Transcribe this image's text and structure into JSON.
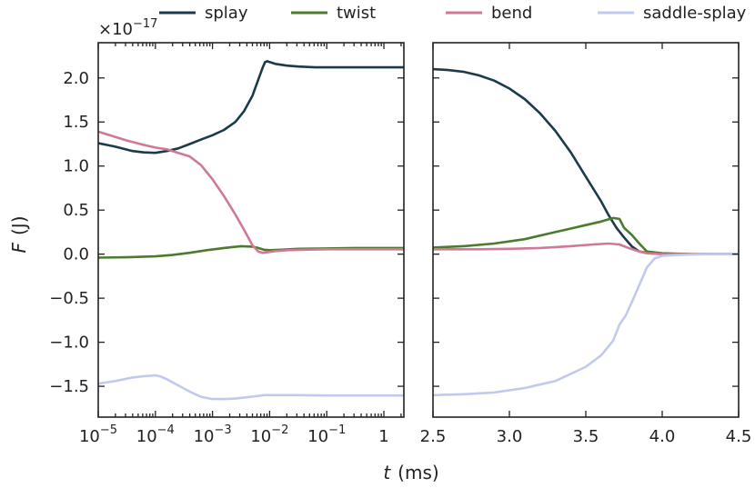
{
  "chart_data": {
    "type": "line",
    "ylabel": "F (J)",
    "ylabel_var": "F",
    "ylabel_unit": "(J)",
    "xlabel": "t (ms)",
    "xlabel_var": "t",
    "xlabel_unit": "(ms)",
    "y_offset": {
      "base": "×10",
      "exp": "−17"
    },
    "ylim": [
      -1.85,
      2.4
    ],
    "yticks": [
      {
        "v": 2.0,
        "label": "2.0"
      },
      {
        "v": 1.5,
        "label": "1.5"
      },
      {
        "v": 1.0,
        "label": "1.0"
      },
      {
        "v": 0.5,
        "label": "0.5"
      },
      {
        "v": 0.0,
        "label": "0.0"
      },
      {
        "v": -0.5,
        "label": "−0.5"
      },
      {
        "v": -1.0,
        "label": "−1.0"
      },
      {
        "v": -1.5,
        "label": "−1.5"
      }
    ],
    "legend": [
      {
        "name": "splay",
        "color": "#1c3b4a"
      },
      {
        "name": "twist",
        "color": "#4c7a2e"
      },
      {
        "name": "bend",
        "color": "#cf7a94"
      },
      {
        "name": "saddle-splay",
        "color": "#c2c9ef"
      }
    ],
    "panels": [
      {
        "scale": "log",
        "xlim": [
          -5,
          0.35
        ],
        "xticks": [
          {
            "v": -5,
            "base": "10",
            "exp": "−5"
          },
          {
            "v": -4,
            "base": "10",
            "exp": "−4"
          },
          {
            "v": -3,
            "base": "10",
            "exp": "−3"
          },
          {
            "v": -2,
            "base": "10",
            "exp": "−2"
          },
          {
            "v": -1,
            "base": "10",
            "exp": "−1"
          },
          {
            "v": 0,
            "base": "1",
            "exp": ""
          }
        ],
        "series": [
          {
            "name": "splay",
            "color": "#1c3b4a",
            "x": [
              -5,
              -4.7,
              -4.4,
              -4.2,
              -4.0,
              -3.8,
              -3.6,
              -3.4,
              -3.2,
              -3.0,
              -2.8,
              -2.6,
              -2.45,
              -2.3,
              -2.2,
              -2.12,
              -2.08,
              -2.04,
              -2.0,
              -1.9,
              -1.7,
              -1.5,
              -1.2,
              -0.8,
              -0.4,
              0.0,
              0.35
            ],
            "y": [
              1.26,
              1.22,
              1.17,
              1.155,
              1.15,
              1.17,
              1.2,
              1.25,
              1.3,
              1.35,
              1.41,
              1.5,
              1.62,
              1.8,
              1.98,
              2.12,
              2.18,
              2.19,
              2.18,
              2.16,
              2.14,
              2.13,
              2.12,
              2.12,
              2.12,
              2.12,
              2.12
            ]
          },
          {
            "name": "twist",
            "color": "#4c7a2e",
            "x": [
              -5,
              -4.5,
              -4.0,
              -3.7,
              -3.4,
              -3.1,
              -2.8,
              -2.5,
              -2.3,
              -2.2,
              -2.1,
              -2.0,
              -1.8,
              -1.5,
              -1.0,
              -0.5,
              0.0,
              0.35
            ],
            "y": [
              -0.04,
              -0.035,
              -0.025,
              -0.01,
              0.015,
              0.045,
              0.07,
              0.09,
              0.085,
              0.07,
              0.05,
              0.045,
              0.05,
              0.06,
              0.065,
              0.07,
              0.07,
              0.07
            ]
          },
          {
            "name": "bend",
            "color": "#cf7a94",
            "x": [
              -5,
              -4.8,
              -4.5,
              -4.2,
              -4.0,
              -3.8,
              -3.6,
              -3.4,
              -3.2,
              -3.0,
              -2.8,
              -2.6,
              -2.45,
              -2.3,
              -2.2,
              -2.12,
              -2.06,
              -2.0,
              -1.9,
              -1.7,
              -1.4,
              -1.0,
              -0.5,
              0.0,
              0.35
            ],
            "y": [
              1.39,
              1.35,
              1.29,
              1.24,
              1.21,
              1.19,
              1.15,
              1.11,
              1.01,
              0.85,
              0.66,
              0.45,
              0.28,
              0.1,
              0.03,
              0.015,
              0.02,
              0.025,
              0.035,
              0.045,
              0.05,
              0.055,
              0.055,
              0.055,
              0.055
            ]
          },
          {
            "name": "saddle-splay",
            "color": "#c2c9ef",
            "x": [
              -5,
              -4.7,
              -4.4,
              -4.2,
              -4.0,
              -3.9,
              -3.8,
              -3.6,
              -3.4,
              -3.2,
              -3.0,
              -2.8,
              -2.6,
              -2.4,
              -2.2,
              -2.1,
              -2.0,
              -1.8,
              -1.5,
              -1.0,
              -0.5,
              0.0,
              0.35
            ],
            "y": [
              -1.47,
              -1.44,
              -1.4,
              -1.385,
              -1.375,
              -1.39,
              -1.42,
              -1.49,
              -1.56,
              -1.62,
              -1.645,
              -1.645,
              -1.64,
              -1.625,
              -1.61,
              -1.6,
              -1.6,
              -1.6,
              -1.6,
              -1.605,
              -1.605,
              -1.605,
              -1.605
            ]
          }
        ]
      },
      {
        "scale": "linear",
        "xlim": [
          2.5,
          4.5
        ],
        "xticks": [
          {
            "v": 2.5,
            "label": "2.5"
          },
          {
            "v": 3.0,
            "label": "3.0"
          },
          {
            "v": 3.5,
            "label": "3.5"
          },
          {
            "v": 4.0,
            "label": "4.0"
          },
          {
            "v": 4.5,
            "label": "4.5"
          }
        ],
        "series": [
          {
            "name": "splay",
            "color": "#1c3b4a",
            "x": [
              2.5,
              2.6,
              2.7,
              2.8,
              2.9,
              3.0,
              3.1,
              3.2,
              3.3,
              3.4,
              3.5,
              3.6,
              3.65,
              3.7,
              3.75,
              3.8,
              3.85,
              3.9,
              3.95,
              4.0,
              4.1,
              4.2,
              4.3,
              4.4,
              4.5
            ],
            "y": [
              2.1,
              2.09,
              2.07,
              2.03,
              1.97,
              1.88,
              1.76,
              1.6,
              1.4,
              1.16,
              0.88,
              0.6,
              0.44,
              0.3,
              0.19,
              0.09,
              0.03,
              0.015,
              0.01,
              0.005,
              0.002,
              0.0,
              0.0,
              0.0,
              0.0
            ]
          },
          {
            "name": "twist",
            "color": "#4c7a2e",
            "x": [
              2.5,
              2.7,
              2.9,
              3.1,
              3.3,
              3.5,
              3.6,
              3.68,
              3.72,
              3.75,
              3.8,
              3.85,
              3.9,
              4.0,
              4.1,
              4.2,
              4.5
            ],
            "y": [
              0.075,
              0.09,
              0.12,
              0.17,
              0.25,
              0.33,
              0.37,
              0.41,
              0.4,
              0.3,
              0.22,
              0.12,
              0.03,
              0.01,
              0.005,
              0.0,
              0.0
            ]
          },
          {
            "name": "bend",
            "color": "#cf7a94",
            "x": [
              2.5,
              2.8,
              3.0,
              3.2,
              3.4,
              3.55,
              3.65,
              3.72,
              3.78,
              3.85,
              3.9,
              3.95,
              4.0,
              4.1,
              4.2,
              4.5
            ],
            "y": [
              0.055,
              0.055,
              0.06,
              0.07,
              0.09,
              0.11,
              0.12,
              0.11,
              0.07,
              0.03,
              0.01,
              0.005,
              0.0,
              0.0,
              0.0,
              0.0
            ]
          },
          {
            "name": "saddle-splay",
            "color": "#c2c9ef",
            "x": [
              2.5,
              2.7,
              2.9,
              3.1,
              3.3,
              3.5,
              3.6,
              3.68,
              3.72,
              3.76,
              3.8,
              3.85,
              3.9,
              3.95,
              4.0,
              4.1,
              4.2,
              4.3,
              4.5
            ],
            "y": [
              -1.6,
              -1.59,
              -1.57,
              -1.52,
              -1.44,
              -1.28,
              -1.15,
              -0.98,
              -0.8,
              -0.7,
              -0.55,
              -0.35,
              -0.15,
              -0.05,
              -0.02,
              -0.01,
              -0.005,
              0.0,
              0.0
            ]
          }
        ]
      }
    ]
  }
}
